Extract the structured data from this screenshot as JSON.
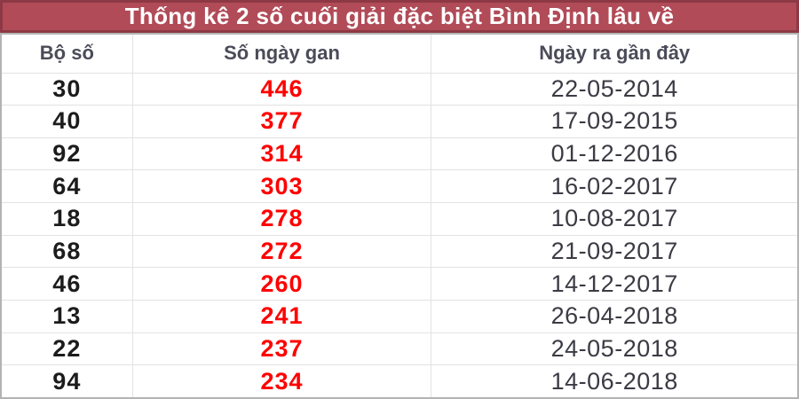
{
  "title": {
    "text": "Thống kê 2 số cuối giải đặc biệt Bình Định lâu về"
  },
  "table": {
    "headers": {
      "pair": "Bộ số",
      "gap": "Số ngày gan",
      "date": "Ngày ra gần đây"
    },
    "rows": [
      {
        "pair": "30",
        "gap": "446",
        "date": "22-05-2014"
      },
      {
        "pair": "40",
        "gap": "377",
        "date": "17-09-2015"
      },
      {
        "pair": "92",
        "gap": "314",
        "date": "01-12-2016"
      },
      {
        "pair": "64",
        "gap": "303",
        "date": "16-02-2017"
      },
      {
        "pair": "18",
        "gap": "278",
        "date": "10-08-2017"
      },
      {
        "pair": "68",
        "gap": "272",
        "date": "21-09-2017"
      },
      {
        "pair": "46",
        "gap": "260",
        "date": "14-12-2017"
      },
      {
        "pair": "13",
        "gap": "241",
        "date": "26-04-2018"
      },
      {
        "pair": "22",
        "gap": "237",
        "date": "24-05-2018"
      },
      {
        "pair": "94",
        "gap": "234",
        "date": "14-06-2018"
      }
    ]
  },
  "colors": {
    "title_background": "#b14b58",
    "title_border": "#8d3945",
    "title_text": "#ffffff",
    "header_text": "#4b4b59",
    "pair_text": "#1c1c1c",
    "gap_text": "#fe0000",
    "date_text": "#3b3b44",
    "outer_border": "#b3b3b3",
    "cell_border": "#e2e2e2"
  }
}
